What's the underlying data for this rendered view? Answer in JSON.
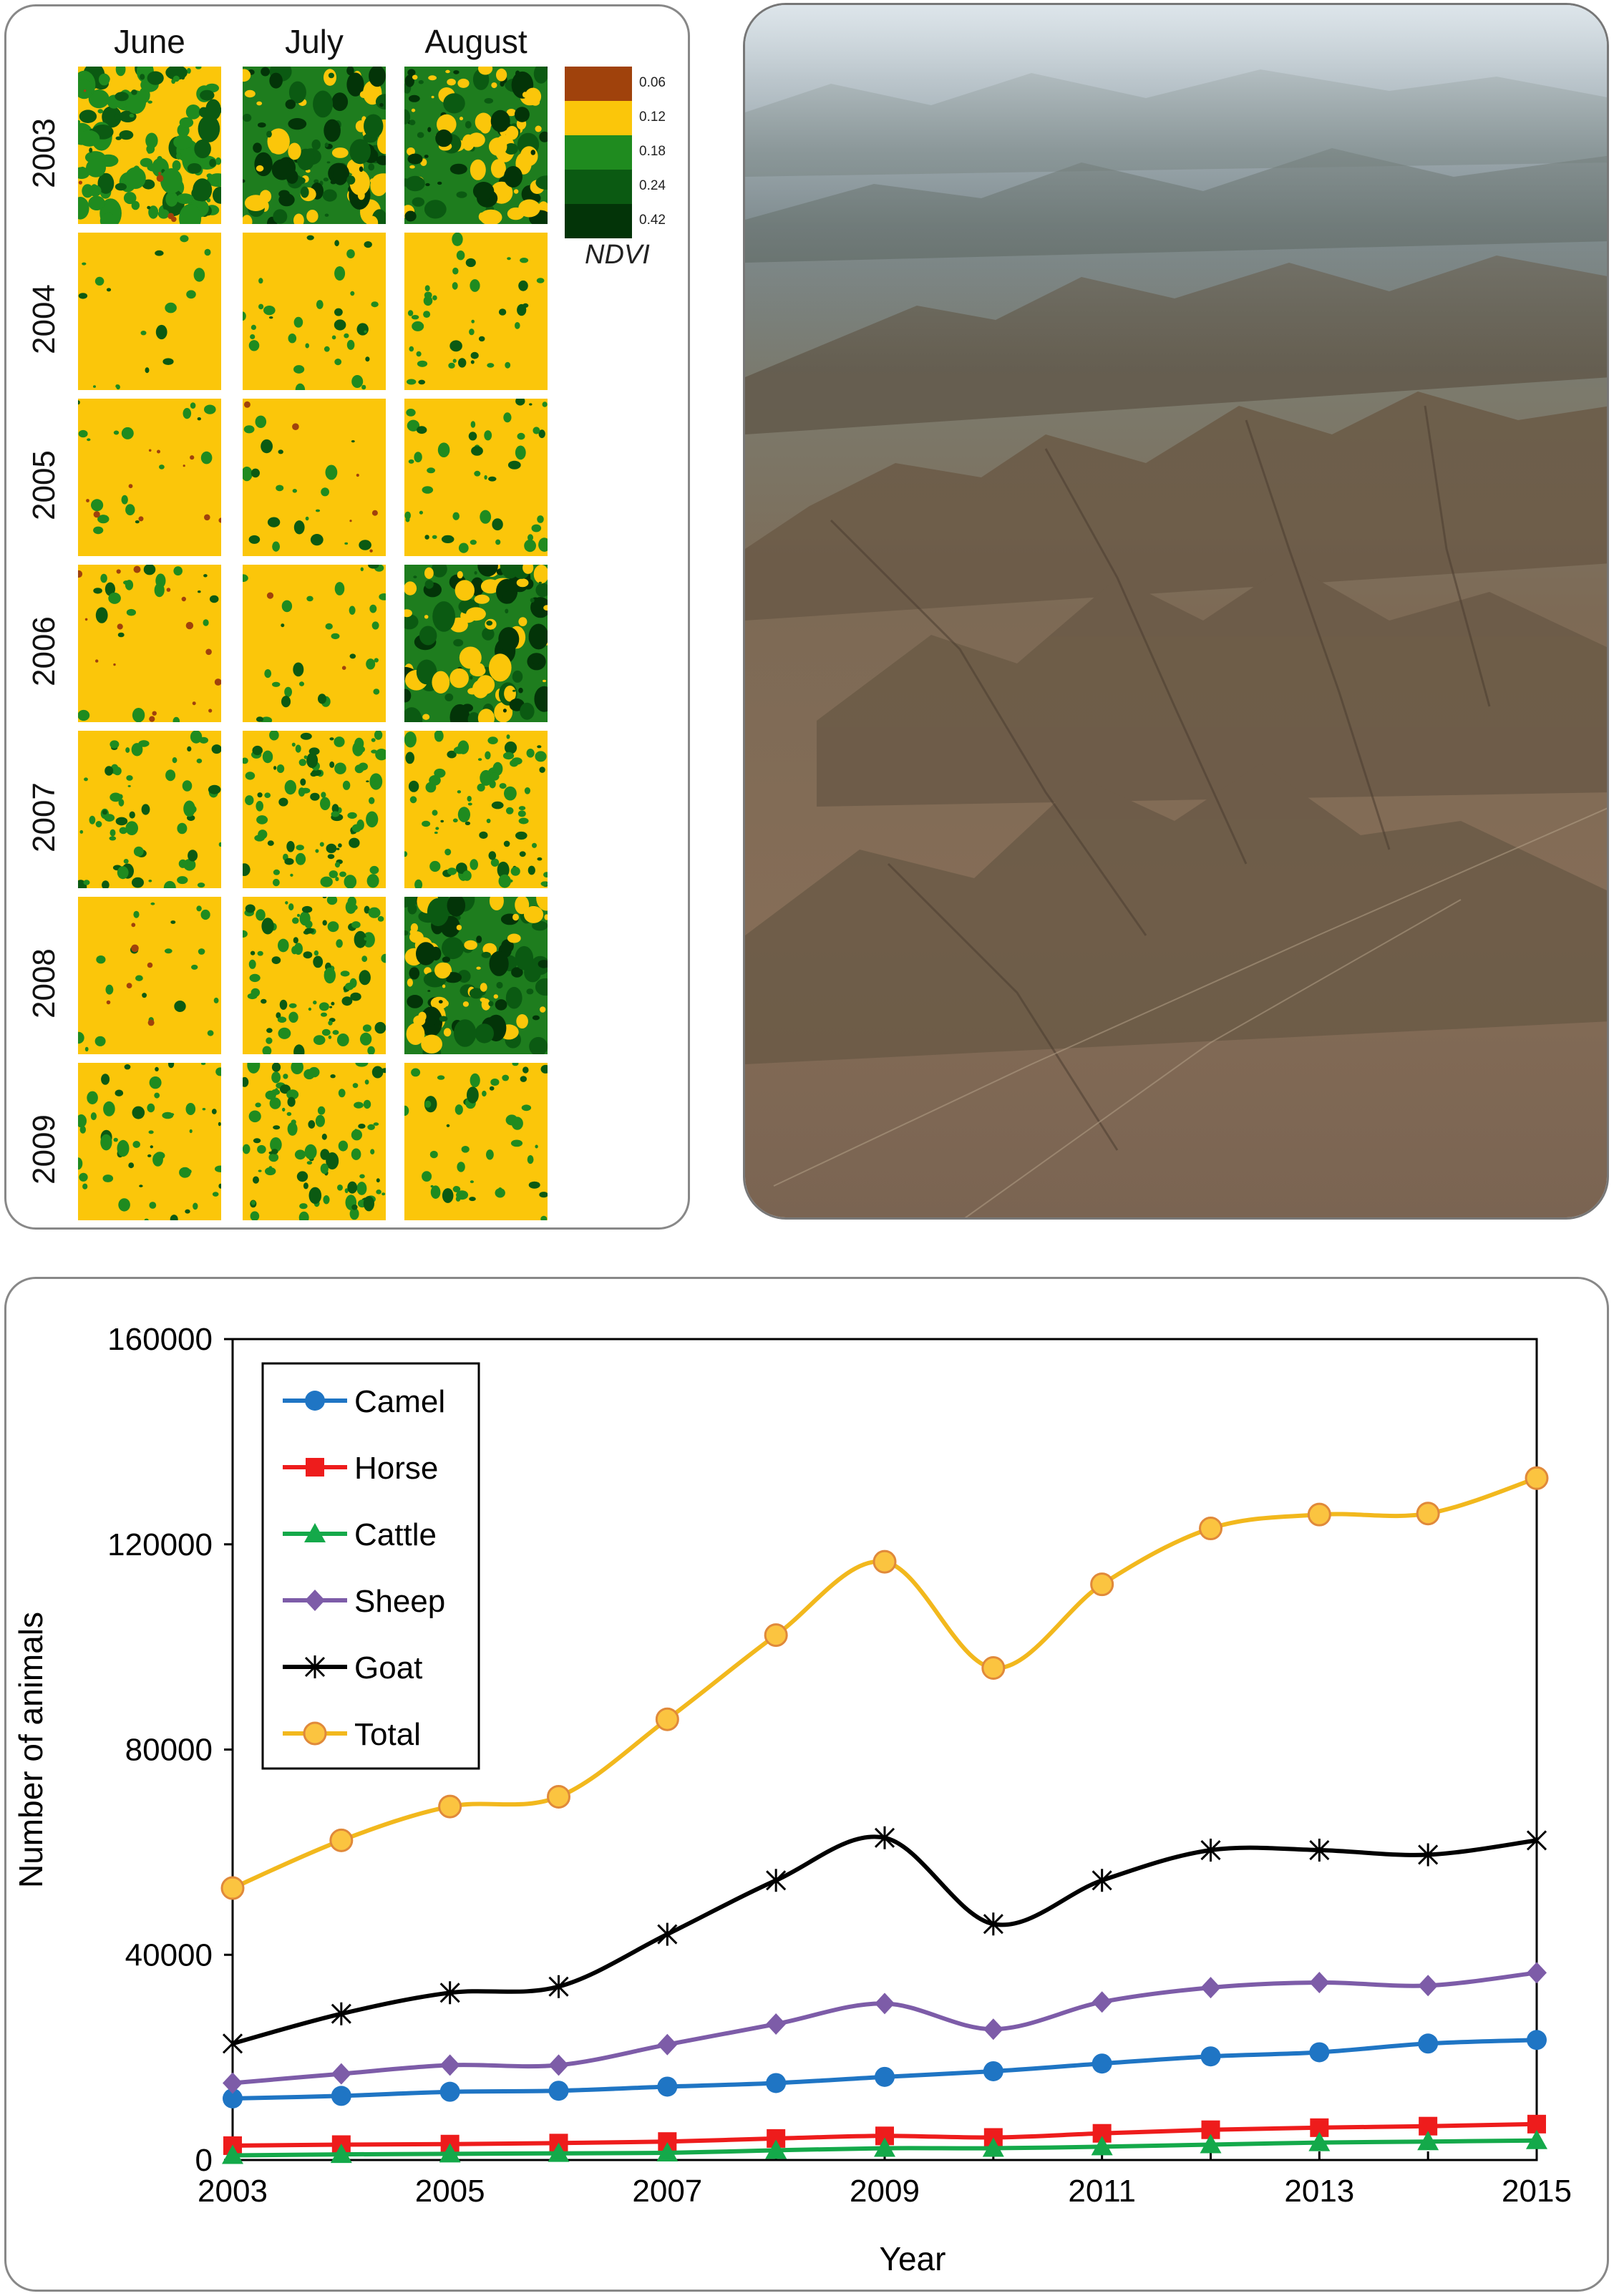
{
  "ndvi": {
    "months": [
      "June",
      "July",
      "August"
    ],
    "years": [
      "2003",
      "2004",
      "2005",
      "2006",
      "2007",
      "2008",
      "2009"
    ],
    "legend_title": "NDVI",
    "legend": [
      {
        "label": "0.06",
        "color": "#a0420c"
      },
      {
        "label": "0.12",
        "color": "#fbc60a"
      },
      {
        "label": "0.18",
        "color": "#1f8b1f"
      },
      {
        "label": "0.24",
        "color": "#0b5a12"
      },
      {
        "label": "0.42",
        "color": "#033408"
      }
    ],
    "greenness": [
      [
        0.45,
        0.85,
        0.75
      ],
      [
        0.02,
        0.08,
        0.1
      ],
      [
        0.02,
        0.03,
        0.12
      ],
      [
        0.03,
        0.06,
        0.85
      ],
      [
        0.18,
        0.3,
        0.25
      ],
      [
        0.03,
        0.3,
        0.92
      ],
      [
        0.15,
        0.3,
        0.12
      ]
    ],
    "brownness": [
      [
        0.03,
        0.0,
        0.0
      ],
      [
        0.0,
        0.0,
        0.0
      ],
      [
        0.05,
        0.03,
        0.0
      ],
      [
        0.08,
        0.01,
        0.0
      ],
      [
        0.0,
        0.0,
        0.0
      ],
      [
        0.03,
        0.0,
        0.0
      ],
      [
        0.0,
        0.0,
        0.0
      ]
    ]
  },
  "chart_data": {
    "type": "line",
    "x": [
      2003,
      2004,
      2005,
      2006,
      2007,
      2008,
      2009,
      2010,
      2011,
      2012,
      2013,
      2014,
      2015
    ],
    "xticks": [
      "2003",
      "2005",
      "2007",
      "2009",
      "2011",
      "2013",
      "2015"
    ],
    "yticks": [
      "0",
      "40000",
      "80000",
      "120000",
      "160000"
    ],
    "xlabel": "Year",
    "ylabel": "Number of animals",
    "xlim": [
      2003,
      2015
    ],
    "ylim": [
      0,
      160000
    ],
    "legend_position": "top-left",
    "series": [
      {
        "name": "Camel",
        "color": "#1f75c4",
        "marker": "circle",
        "values": [
          12000,
          12500,
          13300,
          13500,
          14300,
          15000,
          16200,
          17300,
          18800,
          20200,
          21000,
          22700,
          23400
        ]
      },
      {
        "name": "Horse",
        "color": "#ee1c1c",
        "marker": "square",
        "values": [
          2800,
          3000,
          3100,
          3300,
          3600,
          4200,
          4700,
          4400,
          5200,
          5900,
          6300,
          6600,
          7000
        ]
      },
      {
        "name": "Cattle",
        "color": "#14a94a",
        "marker": "triangle",
        "values": [
          900,
          1100,
          1200,
          1300,
          1400,
          1900,
          2300,
          2300,
          2600,
          3000,
          3400,
          3600,
          3800
        ]
      },
      {
        "name": "Sheep",
        "color": "#7d5ca8",
        "marker": "diamond",
        "values": [
          15000,
          16800,
          18500,
          18500,
          22500,
          26500,
          30500,
          25500,
          30800,
          33600,
          34600,
          34000,
          36500
        ]
      },
      {
        "name": "Goat",
        "color": "#000000",
        "marker": "star",
        "values": [
          22700,
          28500,
          32600,
          33800,
          44000,
          54500,
          62800,
          46000,
          54500,
          60400,
          60400,
          59500,
          62300
        ]
      },
      {
        "name": "Total",
        "color": "#f2b81d",
        "marker": "circle-gold",
        "values": [
          53000,
          62300,
          68900,
          70800,
          85900,
          102300,
          116600,
          95900,
          112200,
          123100,
          125800,
          126000,
          132900
        ]
      }
    ]
  }
}
